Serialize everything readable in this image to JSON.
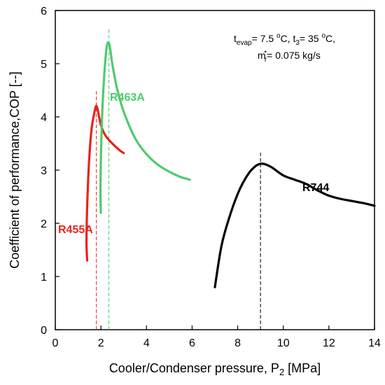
{
  "chart_data": {
    "type": "line",
    "xlabel": {
      "prefix": "Cooler/Condenser pressure, P",
      "sub": "2",
      "suffix": " [MPa]"
    },
    "ylabel": "Coefficient of performance,COP [--]",
    "xlim": [
      0,
      14
    ],
    "ylim": [
      0,
      6
    ],
    "xticks": [
      "0",
      "2",
      "4",
      "6",
      "8",
      "10",
      "12",
      "14"
    ],
    "yticks": [
      "0",
      "1",
      "2",
      "3",
      "4",
      "5",
      "6"
    ],
    "grid": false,
    "annotation": {
      "line1": {
        "t_evap": "t",
        "evap_sub": "evap",
        "eq1": "= 7.5 ",
        "o1": "o",
        "c1": "C, t",
        "three_sub": "3",
        "eq2": "= 35 ",
        "o2": "o",
        "c2": "C,"
      },
      "line2": {
        "m": "m",
        "dot": "•",
        "r_sub": "r",
        "eq": "= 0.075 kg/s"
      }
    },
    "series": [
      {
        "name": "R455A",
        "color": "#e8231c",
        "x": [
          1.4,
          1.37,
          1.38,
          1.42,
          1.5,
          1.6,
          1.7,
          1.78,
          1.85,
          2.0,
          2.2,
          2.5,
          2.8,
          3.0
        ],
        "y": [
          1.3,
          1.6,
          2.0,
          2.6,
          3.3,
          3.8,
          4.05,
          4.2,
          4.15,
          3.85,
          3.65,
          3.5,
          3.38,
          3.32
        ],
        "optimum_x": 1.8
      },
      {
        "name": "R463A",
        "color": "#4fca6f",
        "x": [
          2.0,
          1.98,
          2.0,
          2.05,
          2.15,
          2.25,
          2.33,
          2.4,
          2.5,
          2.7,
          3.0,
          3.5,
          4.0,
          4.5,
          5.0,
          5.5,
          5.9
        ],
        "y": [
          2.2,
          2.6,
          3.2,
          4.0,
          4.8,
          5.3,
          5.4,
          5.3,
          5.0,
          4.55,
          4.1,
          3.6,
          3.3,
          3.1,
          2.97,
          2.87,
          2.82
        ],
        "optimum_x": 2.35
      },
      {
        "name": "R744",
        "color": "#000000",
        "x": [
          7.0,
          7.3,
          7.7,
          8.1,
          8.5,
          8.8,
          9.0,
          9.2,
          9.5,
          10.0,
          10.5,
          11.0,
          11.5,
          12.0,
          12.5,
          13.0,
          13.5,
          14.0
        ],
        "y": [
          0.8,
          1.6,
          2.2,
          2.65,
          2.95,
          3.08,
          3.12,
          3.11,
          3.05,
          2.9,
          2.82,
          2.74,
          2.62,
          2.52,
          2.46,
          2.42,
          2.38,
          2.33
        ],
        "optimum_x": 9.0
      }
    ]
  }
}
